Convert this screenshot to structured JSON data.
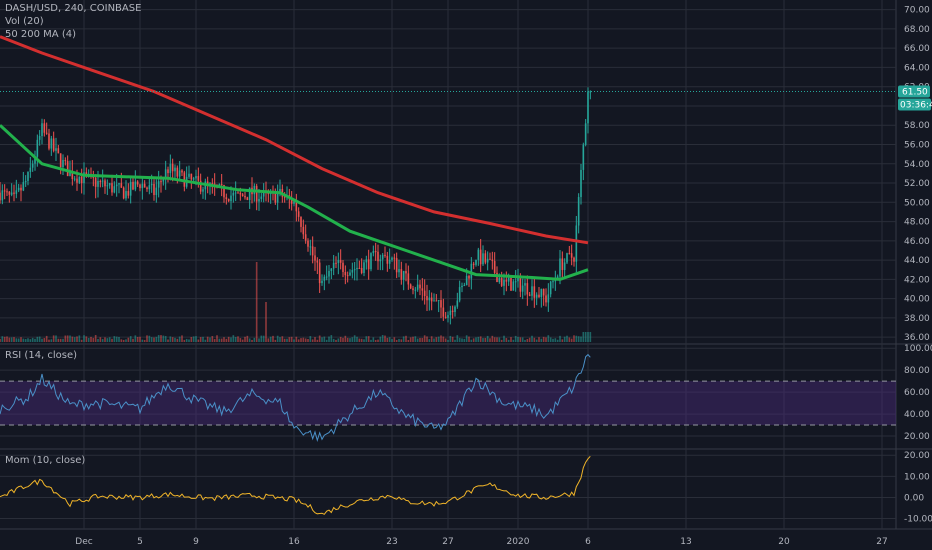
{
  "legend": {
    "symbol": "DASH/USD, 240, COINBASE",
    "vol": "Vol (20)",
    "ma": "50 200 MA (4)",
    "rsi": "RSI (14, close)",
    "mom": "Mom (10, close)"
  },
  "last_price": {
    "price": "61.50",
    "countdown": "03:36:45",
    "value": 61.5
  },
  "colors": {
    "background": "#131722",
    "grid": "#2a2e39",
    "up": "#26a69a",
    "down": "#ef5350",
    "ma50": "#22b14c",
    "ma200": "#d32f2f",
    "rsi_line": "#4a90c8",
    "rsi_band": "#4a2a7a",
    "mom_line": "#f0b429",
    "price_tag": "#26a69a"
  },
  "chart_data": [
    {
      "type": "candlestick",
      "title": "",
      "x_tick_labels": [
        "Dec",
        "5",
        "9",
        "16",
        "23",
        "27",
        "2020",
        "6",
        "13",
        "20",
        "27"
      ],
      "y_ticks": [
        36,
        38,
        40,
        42,
        44,
        46,
        48,
        50,
        52,
        54,
        56,
        58,
        60,
        62,
        64,
        66,
        68,
        70
      ],
      "y_tick_labels": [
        "36.00",
        "38.00",
        "40.00",
        "42.00",
        "44.00",
        "46.00",
        "48.00",
        "50.00",
        "52.00",
        "54.00",
        "56.00",
        "58.00",
        "60.00",
        "62.00",
        "64.00",
        "66.00",
        "68.00",
        "70.00"
      ],
      "ylim": [
        35.5,
        71
      ],
      "date_range": [
        "2019-11-25",
        "2020-01-28"
      ],
      "candle_interval_hours": 4,
      "close_path": [
        [
          "2019-11-25",
          51.0
        ],
        [
          "2019-11-26",
          50.2
        ],
        [
          "2019-11-27",
          52.5
        ],
        [
          "2019-11-28",
          57.5
        ],
        [
          "2019-11-29",
          55.0
        ],
        [
          "2019-11-30",
          53.0
        ],
        [
          "2019-12-01",
          52.5
        ],
        [
          "2019-12-02",
          52.0
        ],
        [
          "2019-12-03",
          51.5
        ],
        [
          "2019-12-04",
          51.0
        ],
        [
          "2019-12-05",
          52.0
        ],
        [
          "2019-12-06",
          51.0
        ],
        [
          "2019-12-07",
          53.5
        ],
        [
          "2019-12-08",
          52.5
        ],
        [
          "2019-12-09",
          52.0
        ],
        [
          "2019-12-10",
          51.5
        ],
        [
          "2019-12-11",
          51.0
        ],
        [
          "2019-12-12",
          50.5
        ],
        [
          "2019-12-13",
          51.0
        ],
        [
          "2019-12-14",
          50.5
        ],
        [
          "2019-12-15",
          50.8
        ],
        [
          "2019-12-16",
          50.0
        ],
        [
          "2019-12-17",
          46.0
        ],
        [
          "2019-12-18",
          41.5
        ],
        [
          "2019-12-19",
          43.5
        ],
        [
          "2019-12-20",
          43.0
        ],
        [
          "2019-12-21",
          43.5
        ],
        [
          "2019-12-22",
          44.5
        ],
        [
          "2019-12-23",
          44.0
        ],
        [
          "2019-12-24",
          42.0
        ],
        [
          "2019-12-25",
          41.0
        ],
        [
          "2019-12-26",
          39.5
        ],
        [
          "2019-12-27",
          38.5
        ],
        [
          "2019-12-28",
          41.0
        ],
        [
          "2019-12-29",
          44.5
        ],
        [
          "2019-12-30",
          43.5
        ],
        [
          "2019-12-31",
          41.5
        ],
        [
          "2020-01-01",
          41.5
        ],
        [
          "2020-01-02",
          41.0
        ],
        [
          "2020-01-03",
          40.0
        ],
        [
          "2020-01-04",
          43.5
        ],
        [
          "2020-01-05",
          44.5
        ],
        [
          "2020-01-06",
          61.5
        ]
      ],
      "ma50_path": [
        [
          "2019-11-25",
          58.0
        ],
        [
          "2019-11-28",
          54.0
        ],
        [
          "2019-12-01",
          52.8
        ],
        [
          "2019-12-07",
          52.5
        ],
        [
          "2019-12-12",
          51.3
        ],
        [
          "2019-12-15",
          51.0
        ],
        [
          "2019-12-17",
          49.5
        ],
        [
          "2019-12-20",
          47.0
        ],
        [
          "2019-12-24",
          45.0
        ],
        [
          "2019-12-27",
          43.5
        ],
        [
          "2019-12-29",
          42.5
        ],
        [
          "2020-01-02",
          42.2
        ],
        [
          "2020-01-04",
          42.0
        ],
        [
          "2020-01-05",
          42.5
        ],
        [
          "2020-01-06",
          43.0
        ]
      ],
      "ma200_path": [
        [
          "2019-11-25",
          67.2
        ],
        [
          "2019-11-28",
          65.5
        ],
        [
          "2019-12-02",
          63.5
        ],
        [
          "2019-12-06",
          61.5
        ],
        [
          "2019-12-10",
          59.0
        ],
        [
          "2019-12-14",
          56.5
        ],
        [
          "2019-12-18",
          53.5
        ],
        [
          "2019-12-22",
          51.0
        ],
        [
          "2019-12-26",
          49.0
        ],
        [
          "2019-12-30",
          47.8
        ],
        [
          "2020-01-03",
          46.5
        ],
        [
          "2020-01-06",
          45.8
        ]
      ]
    },
    {
      "type": "line",
      "title": "",
      "y_ticks": [
        20,
        40,
        60,
        80,
        100
      ],
      "y_tick_labels": [
        "20.00",
        "40.00",
        "60.00",
        "80.00",
        "100.00"
      ],
      "ylim": [
        10,
        102
      ],
      "band": [
        30,
        70
      ],
      "series": [
        {
          "values": [
            [
              "2019-11-25",
              45
            ],
            [
              "2019-11-27",
              55
            ],
            [
              "2019-11-28",
              72
            ],
            [
              "2019-11-30",
              48
            ],
            [
              "2019-12-02",
              50
            ],
            [
              "2019-12-05",
              45
            ],
            [
              "2019-12-07",
              68
            ],
            [
              "2019-12-09",
              52
            ],
            [
              "2019-12-11",
              42
            ],
            [
              "2019-12-13",
              58
            ],
            [
              "2019-12-15",
              50
            ],
            [
              "2019-12-16",
              28
            ],
            [
              "2019-12-18",
              18
            ],
            [
              "2019-12-20",
              40
            ],
            [
              "2019-12-22",
              60
            ],
            [
              "2019-12-24",
              38
            ],
            [
              "2019-12-26",
              26
            ],
            [
              "2019-12-27",
              32
            ],
            [
              "2019-12-29",
              72
            ],
            [
              "2019-12-31",
              50
            ],
            [
              "2020-01-02",
              45
            ],
            [
              "2020-01-03",
              38
            ],
            [
              "2020-01-05",
              65
            ],
            [
              "2020-01-06",
              94
            ]
          ]
        }
      ]
    },
    {
      "type": "line",
      "title": "",
      "y_ticks": [
        -10,
        0,
        10,
        20
      ],
      "y_tick_labels": [
        "-10.00",
        "0.00",
        "10.00",
        "20.00"
      ],
      "ylim": [
        -14,
        22
      ],
      "series": [
        {
          "values": [
            [
              "2019-11-25",
              0
            ],
            [
              "2019-11-27",
              6
            ],
            [
              "2019-11-28",
              8
            ],
            [
              "2019-11-30",
              -3
            ],
            [
              "2019-12-02",
              0.5
            ],
            [
              "2019-12-05",
              0
            ],
            [
              "2019-12-07",
              1.5
            ],
            [
              "2019-12-10",
              -0.5
            ],
            [
              "2019-12-13",
              1
            ],
            [
              "2019-12-16",
              -1
            ],
            [
              "2019-12-17",
              -4
            ],
            [
              "2019-12-18",
              -8
            ],
            [
              "2019-12-19",
              -5
            ],
            [
              "2019-12-21",
              -1
            ],
            [
              "2019-12-23",
              1
            ],
            [
              "2019-12-24",
              -2
            ],
            [
              "2019-12-26",
              -3
            ],
            [
              "2019-12-27",
              -2
            ],
            [
              "2019-12-29",
              4
            ],
            [
              "2019-12-30",
              6
            ],
            [
              "2020-01-01",
              1
            ],
            [
              "2020-01-03",
              0
            ],
            [
              "2020-01-05",
              2
            ],
            [
              "2020-01-06",
              19
            ]
          ]
        }
      ]
    }
  ]
}
